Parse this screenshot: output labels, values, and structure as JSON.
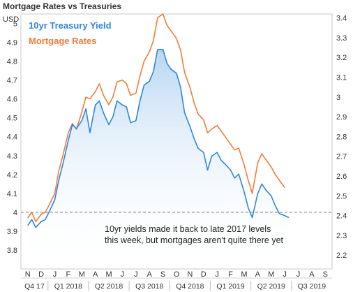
{
  "chart_data": {
    "type": "line",
    "title": "Mortgage Rates vs Treasuries",
    "ylabel": "USD",
    "left_axis": {
      "min": 3.7,
      "max": 5.05,
      "ticks": [
        "5",
        "4.9",
        "4.8",
        "4.7",
        "4.6",
        "4.5",
        "4.4",
        "4.3",
        "4.2",
        "4.1",
        "4",
        "3.9",
        "3.8"
      ],
      "tick_values": [
        5,
        4.9,
        4.8,
        4.7,
        4.6,
        4.5,
        4.4,
        4.3,
        4.2,
        4.1,
        4.0,
        3.9,
        3.8
      ]
    },
    "right_axis": {
      "min": 2.13,
      "max": 3.42,
      "ticks": [
        "3.4",
        "3.3",
        "3.2",
        "3.1",
        "3",
        "2.9",
        "2.8",
        "2.7",
        "2.6",
        "2.5",
        "2.4",
        "2.3",
        "2.2"
      ],
      "tick_values": [
        3.4,
        3.3,
        3.2,
        3.1,
        3.0,
        2.9,
        2.8,
        2.7,
        2.6,
        2.5,
        2.4,
        2.3,
        2.2
      ]
    },
    "month_labels": [
      "N",
      "D",
      "J",
      "F",
      "M",
      "A",
      "M",
      "J",
      "J",
      "A",
      "S",
      "O",
      "N",
      "D",
      "J",
      "F",
      "M",
      "A",
      "M",
      "J",
      "J",
      "A",
      "S"
    ],
    "quarter_labels": [
      "Q4 17",
      "Q1 2018",
      "Q2 2018",
      "Q3 2018",
      "Q4 2018",
      "Q1 2019",
      "Q2 2019",
      "Q3 2019"
    ],
    "reference_line": {
      "axis": "left",
      "value": 4.0,
      "style": "dashed"
    },
    "annotation": [
      "10yr yields made it  back to late 2017 levels",
      "this week, but mortgages aren't quite there yet"
    ],
    "series": [
      {
        "name": "10yr Treasury Yield",
        "axis": "right",
        "color": "#2e86de",
        "area": true,
        "x": [
          0,
          0.3,
          0.6,
          1,
          1.3,
          1.6,
          2,
          2.3,
          2.6,
          3,
          3.3,
          3.6,
          4,
          4.3,
          4.6,
          5,
          5.3,
          5.6,
          6,
          6.3,
          6.6,
          7,
          7.3,
          7.6,
          8,
          8.3,
          8.6,
          9,
          9.3,
          9.6,
          10,
          10.3,
          10.6,
          11,
          11.3,
          11.6,
          12,
          12.3,
          12.6,
          13,
          13.3,
          13.6,
          14,
          14.3,
          14.6,
          15,
          15.3,
          15.6,
          16,
          16.3,
          16.6,
          17,
          17.3,
          17.6,
          18,
          18.3,
          18.6,
          19,
          19.3
        ],
        "values": [
          2.35,
          2.38,
          2.34,
          2.37,
          2.38,
          2.42,
          2.48,
          2.58,
          2.66,
          2.78,
          2.86,
          2.84,
          2.88,
          2.94,
          2.82,
          2.96,
          2.98,
          2.92,
          2.86,
          2.9,
          2.98,
          2.96,
          2.95,
          2.87,
          2.88,
          2.98,
          3.06,
          3.08,
          3.13,
          3.24,
          3.24,
          3.17,
          3.14,
          3.12,
          3.05,
          2.92,
          2.85,
          2.79,
          2.74,
          2.72,
          2.63,
          2.7,
          2.72,
          2.68,
          2.66,
          2.63,
          2.59,
          2.61,
          2.52,
          2.44,
          2.39,
          2.51,
          2.56,
          2.53,
          2.5,
          2.45,
          2.41,
          2.4,
          2.39
        ]
      },
      {
        "name": "Mortgage Rates",
        "axis": "left",
        "color": "#ef7d3c",
        "area": false,
        "x": [
          0,
          0.3,
          0.6,
          1,
          1.3,
          1.6,
          2,
          2.3,
          2.6,
          3,
          3.3,
          3.6,
          4,
          4.3,
          4.6,
          5,
          5.3,
          5.6,
          6,
          6.3,
          6.6,
          7,
          7.3,
          7.6,
          8,
          8.3,
          8.6,
          9,
          9.3,
          9.6,
          10,
          10.3,
          10.6,
          11,
          11.3,
          11.6,
          12,
          12.3,
          12.6,
          13,
          13.3,
          13.6,
          14,
          14.3,
          14.6,
          15,
          15.3,
          15.6,
          16,
          16.3,
          16.6,
          17,
          17.3,
          17.6,
          18,
          18.3,
          18.6,
          19
        ],
        "values": [
          3.97,
          4.0,
          3.95,
          3.99,
          4.0,
          4.04,
          4.1,
          4.22,
          4.3,
          4.42,
          4.47,
          4.44,
          4.53,
          4.61,
          4.6,
          4.64,
          4.68,
          4.62,
          4.57,
          4.61,
          4.69,
          4.7,
          4.68,
          4.62,
          4.63,
          4.72,
          4.8,
          4.85,
          4.91,
          5.03,
          5.05,
          4.99,
          4.96,
          4.92,
          4.86,
          4.74,
          4.66,
          4.58,
          4.52,
          4.49,
          4.42,
          4.44,
          4.46,
          4.43,
          4.4,
          4.36,
          4.33,
          4.34,
          4.25,
          4.17,
          4.1,
          4.26,
          4.31,
          4.28,
          4.24,
          4.2,
          4.17,
          4.13
        ]
      }
    ]
  }
}
